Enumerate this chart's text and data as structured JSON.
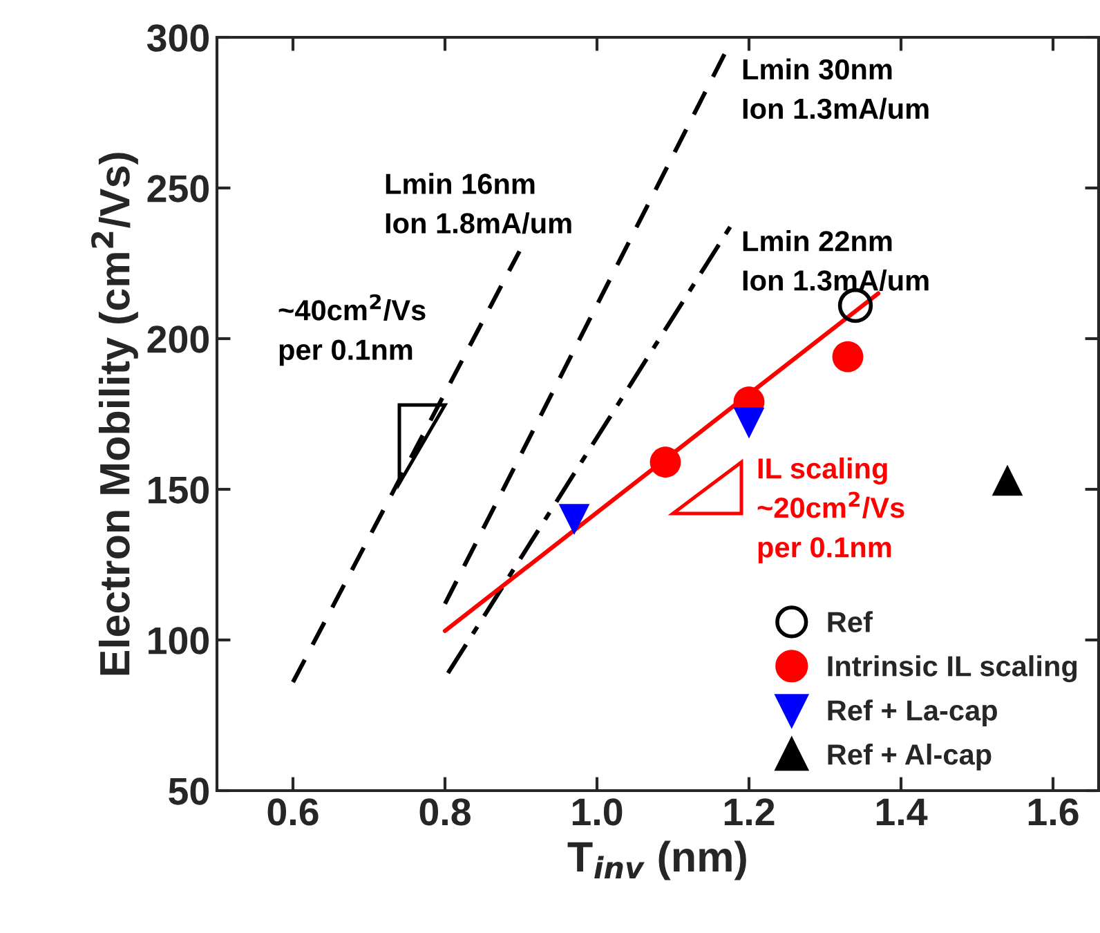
{
  "chart_data": {
    "type": "scatter",
    "xlabel": "T$_{inv}$ (nm)",
    "ylabel": "Electron Mobility (cm$^{2}$/Vs)",
    "xlim": [
      0.5,
      1.66
    ],
    "ylim": [
      50,
      300
    ],
    "xticks": [
      0.6,
      0.8,
      {
        "value": 1.0,
        "label": "1.0"
      },
      1.2,
      1.4,
      1.6
    ],
    "yticks": [
      50,
      100,
      150,
      200,
      250,
      300
    ],
    "grid": false,
    "legend": "bottom right",
    "series": [
      {
        "type": "line",
        "color": "#000000",
        "line_style": "dashed",
        "marker": "none",
        "x": [
          0.6,
          0.898
        ],
        "values": [
          86,
          229
        ]
      },
      {
        "type": "line",
        "color": "#000000",
        "line_style": "dashed",
        "marker": "none",
        "x": [
          0.8,
          1.175
        ],
        "values": [
          112,
          298
        ]
      },
      {
        "type": "line",
        "color": "#000000",
        "line_style": "dashdot",
        "marker": "none",
        "x": [
          0.804,
          1.18
        ],
        "values": [
          89,
          239
        ]
      },
      {
        "type": "line",
        "color": "#ff0000",
        "line_style": "solid",
        "marker": "none",
        "x": [
          0.8,
          1.37
        ],
        "values": [
          103,
          215
        ]
      },
      {
        "name": "Ref",
        "color": "#000000",
        "marker": "open circle",
        "x": [
          1.34
        ],
        "values": [
          211
        ]
      },
      {
        "name": "Intrinsic IL scaling",
        "color": "#ff0000",
        "marker": "circle",
        "x": [
          1.09,
          1.2,
          1.33
        ],
        "values": [
          159,
          179,
          194
        ]
      },
      {
        "name": "Ref + La-cap",
        "color": "#0000ff",
        "marker": "triangle down",
        "x": [
          0.97,
          1.2
        ],
        "values": [
          140,
          172
        ]
      },
      {
        "name": "Ref + Al-cap",
        "color": "#000000",
        "marker": "triangle",
        "x": [
          1.54
        ],
        "values": [
          153
        ]
      }
    ],
    "annotations": [
      "Lmin 16nm\nIon 1.8mA/um",
      "Lmin 30nm\nIon 1.3mA/um",
      "Lmin 22nm\nIon 1.3mA/um",
      "~40cm$^{2}$/Vs\nper 0.1nm",
      "IL scaling\n~20cm$^{2}$/Vs\nper 0.1nm"
    ]
  }
}
